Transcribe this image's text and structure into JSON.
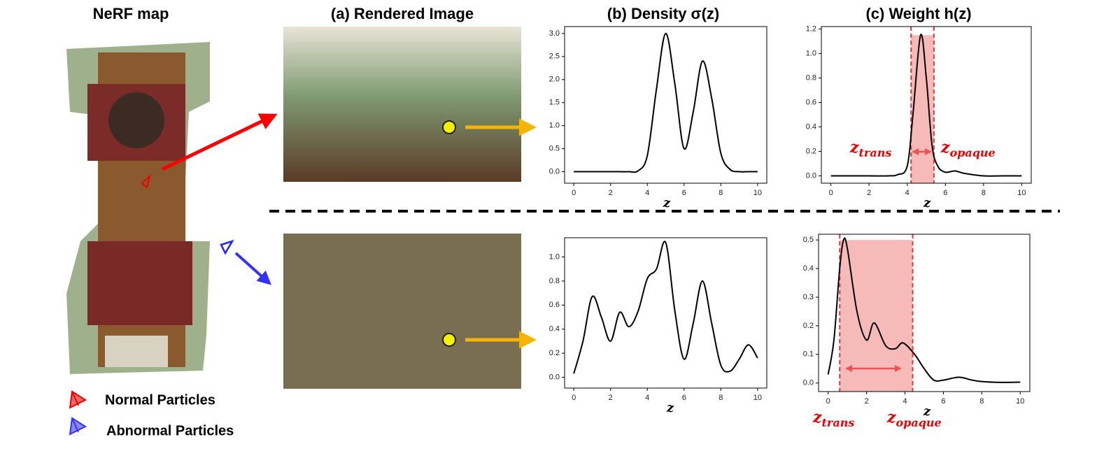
{
  "figure": {
    "columns": [
      "NeRF map",
      "(a) Rendered Image",
      "(b) Density σ(z)",
      "(c) Weight h(z)"
    ],
    "legend": [
      "Normal Particles",
      "Abnormal Particles"
    ]
  },
  "chart_data": [
    {
      "type": "line",
      "xlabel": "z",
      "xlim": [
        -0.5,
        10.5
      ],
      "ylim": [
        -0.25,
        3.15
      ],
      "xticks": [
        0,
        2,
        4,
        6,
        8,
        10
      ],
      "yticks": [
        {
          "value": 0,
          "label": "0.0"
        },
        0.5,
        {
          "value": 1,
          "label": "1.0"
        },
        1.5,
        {
          "value": 2,
          "label": "2.0"
        },
        2.5,
        {
          "value": 3,
          "label": "3.0"
        }
      ],
      "x": [
        0,
        0.5,
        1,
        1.5,
        2,
        2.5,
        3,
        3.5,
        4,
        4.5,
        5,
        5.5,
        6,
        6.5,
        7,
        7.5,
        8,
        8.5,
        9,
        9.5,
        10
      ],
      "series": [
        {
          "color": "#000000",
          "values": [
            0,
            0,
            0,
            0,
            0,
            0,
            0,
            0.02,
            0.35,
            1.8,
            3.0,
            1.9,
            0.5,
            1.3,
            2.4,
            1.6,
            0.4,
            0.05,
            0,
            0,
            0
          ]
        }
      ]
    },
    {
      "type": "line",
      "xlabel": "z",
      "xlim": [
        -0.5,
        10.5
      ],
      "ylim": [
        -0.06,
        1.22
      ],
      "xticks": [
        0,
        2,
        4,
        6,
        8,
        10
      ],
      "yticks": [
        {
          "value": 0,
          "label": "0.0"
        },
        0.2,
        0.4,
        0.6,
        0.8,
        {
          "value": 1,
          "label": "1.0"
        },
        1.2
      ],
      "x": [
        0,
        1,
        2,
        3,
        3.5,
        4,
        4.3,
        4.7,
        5,
        5.3,
        5.6,
        6,
        6.5,
        7,
        8,
        9,
        10
      ],
      "series": [
        {
          "color": "#000000",
          "values": [
            0,
            0,
            0,
            0,
            0.01,
            0.08,
            0.5,
            1.15,
            0.8,
            0.25,
            0.08,
            0.03,
            0.04,
            0.02,
            0,
            0,
            0
          ]
        }
      ],
      "band": [
        4.2,
        5.4
      ],
      "band_color": "#e53935",
      "annotations": [
        {
          "text": "z",
          "sub": "trans"
        },
        {
          "text": "z",
          "sub": "opaque"
        }
      ]
    },
    {
      "type": "line",
      "xlabel": "z",
      "xlim": [
        -0.5,
        10.5
      ],
      "ylim": [
        -0.09,
        1.16
      ],
      "xticks": [
        0,
        2,
        4,
        6,
        8,
        10
      ],
      "yticks": [
        {
          "value": 0,
          "label": "0.0"
        },
        0.2,
        0.4,
        0.6,
        0.8,
        {
          "value": 1,
          "label": "1.0"
        }
      ],
      "x": [
        0,
        0.5,
        1,
        1.5,
        2,
        2.5,
        3,
        3.5,
        4,
        4.5,
        5,
        5.5,
        6,
        6.5,
        7,
        7.5,
        8,
        8.5,
        9,
        9.5,
        10
      ],
      "series": [
        {
          "color": "#000000",
          "values": [
            0.03,
            0.3,
            0.67,
            0.5,
            0.3,
            0.54,
            0.42,
            0.55,
            0.82,
            0.9,
            1.12,
            0.55,
            0.15,
            0.45,
            0.8,
            0.45,
            0.1,
            0.05,
            0.15,
            0.27,
            0.16
          ]
        }
      ]
    },
    {
      "type": "line",
      "xlabel": "z",
      "xlim": [
        -0.5,
        10.5
      ],
      "ylim": [
        -0.03,
        0.52
      ],
      "xticks": [
        0,
        2,
        4,
        6,
        8,
        10
      ],
      "yticks": [
        {
          "value": 0,
          "label": "0.0"
        },
        0.1,
        0.2,
        0.3,
        0.4,
        0.5
      ],
      "x": [
        0,
        0.3,
        0.6,
        0.8,
        1,
        1.5,
        2,
        2.4,
        3,
        3.5,
        3.9,
        4.5,
        5,
        5.5,
        6,
        6.8,
        7.5,
        8,
        9,
        10
      ],
      "series": [
        {
          "color": "#000000",
          "values": [
            0.03,
            0.15,
            0.4,
            0.5,
            0.47,
            0.25,
            0.15,
            0.21,
            0.13,
            0.12,
            0.14,
            0.1,
            0.05,
            0.01,
            0.01,
            0.02,
            0.01,
            0.005,
            0.002,
            0.003
          ]
        }
      ],
      "band": [
        0.6,
        4.4
      ],
      "band_color": "#e53935",
      "annotations": [
        {
          "text": "z",
          "sub": "trans"
        },
        {
          "text": "z",
          "sub": "opaque"
        }
      ]
    }
  ]
}
